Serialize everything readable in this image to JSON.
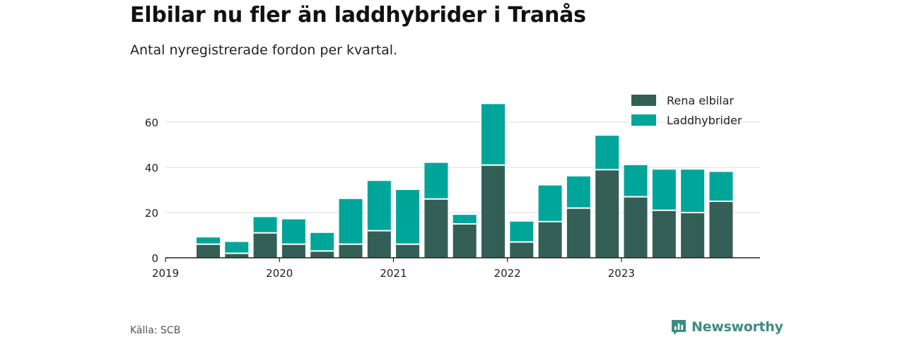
{
  "title": "Elbilar nu fler än laddhybrider i Tranås",
  "subtitle": "Antal nyregistrerade fordon per kvartal.",
  "source": "Källa: SCB",
  "brand": "Newsworthy",
  "colors": {
    "rena_elbilar": "#335f56",
    "laddhybrider": "#00a59a",
    "brand": "#3d8c84"
  },
  "chart_data": {
    "type": "bar",
    "stacked": true,
    "title": "Elbilar nu fler än laddhybrider i Tranås",
    "subtitle": "Antal nyregistrerade fordon per kvartal.",
    "xlabel": "",
    "ylabel": "",
    "ylim": [
      0,
      70
    ],
    "yticks": [
      0,
      20,
      40,
      60
    ],
    "grid": true,
    "legend_position": "top-right",
    "x_tick_labels": [
      "2019",
      "2020",
      "2021",
      "2022",
      "2023"
    ],
    "categories": [
      "2019 Q2",
      "2019 Q3",
      "2019 Q4",
      "2020 Q1",
      "2020 Q2",
      "2020 Q3",
      "2020 Q4",
      "2021 Q1",
      "2021 Q2",
      "2021 Q3",
      "2021 Q4",
      "2022 Q1",
      "2022 Q2",
      "2022 Q3",
      "2022 Q4",
      "2023 Q1",
      "2023 Q2",
      "2023 Q3",
      "2023 Q4"
    ],
    "series": [
      {
        "name": "Rena elbilar",
        "values": [
          6,
          2,
          11,
          6,
          3,
          6,
          12,
          6,
          26,
          15,
          41,
          7,
          16,
          22,
          39,
          27,
          21,
          20,
          25
        ]
      },
      {
        "name": "Laddhybrider",
        "values": [
          3,
          5,
          7,
          11,
          8,
          20,
          22,
          24,
          16,
          4,
          27,
          9,
          16,
          14,
          15,
          14,
          18,
          19,
          13
        ]
      }
    ]
  }
}
